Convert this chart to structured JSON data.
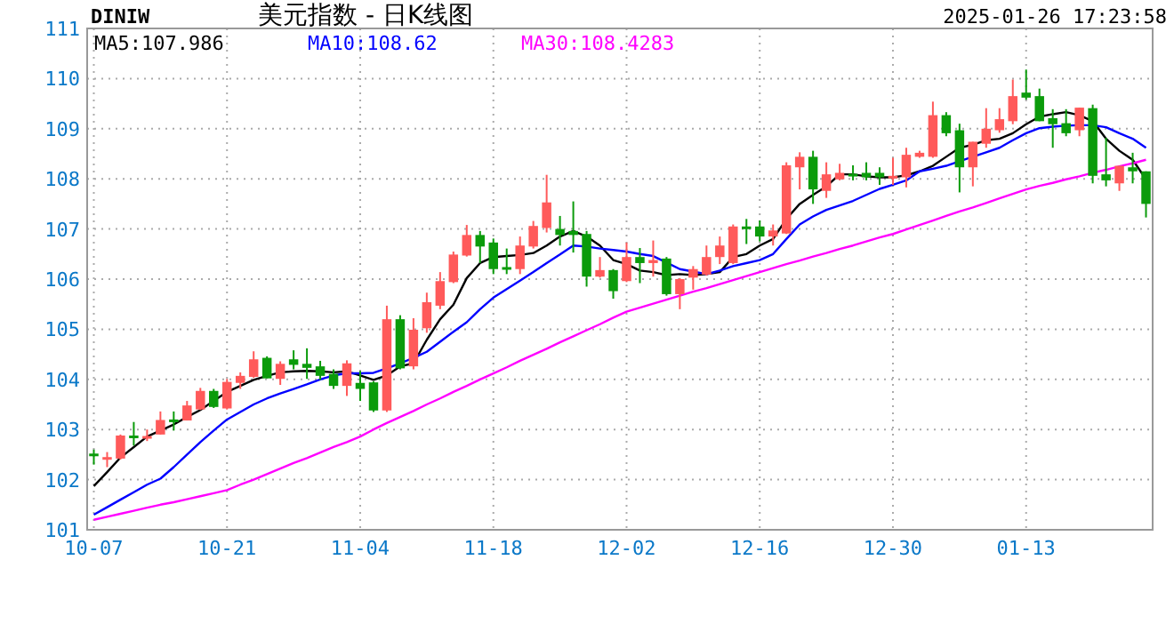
{
  "chart_data": {
    "type": "candlestick",
    "title": "美元指数 - 日K线图",
    "annotations": [
      "DINIW",
      "2025-01-26 17:23:58"
    ],
    "categories": [
      "10-07",
      null,
      null,
      null,
      null,
      null,
      null,
      null,
      null,
      null,
      "10-21",
      null,
      null,
      null,
      null,
      null,
      null,
      null,
      null,
      null,
      "11-04",
      null,
      null,
      null,
      null,
      null,
      null,
      null,
      null,
      null,
      "11-18",
      null,
      null,
      null,
      null,
      null,
      null,
      null,
      null,
      null,
      "12-02",
      null,
      null,
      null,
      null,
      null,
      null,
      null,
      null,
      null,
      "12-16",
      null,
      null,
      null,
      null,
      null,
      null,
      null,
      null,
      null,
      "12-30",
      null,
      null,
      null,
      null,
      null,
      null,
      null,
      null,
      null,
      "01-13",
      null,
      null,
      null,
      null,
      null,
      null,
      null,
      null,
      null
    ],
    "ohlc": [
      [
        102.52,
        102.6,
        102.3,
        102.5
      ],
      [
        102.42,
        102.55,
        102.25,
        102.45
      ],
      [
        102.42,
        102.9,
        102.4,
        102.88
      ],
      [
        102.88,
        103.15,
        102.68,
        102.85
      ],
      [
        102.84,
        103.0,
        102.77,
        102.87
      ],
      [
        102.9,
        103.36,
        102.9,
        103.19
      ],
      [
        103.2,
        103.36,
        102.98,
        103.18
      ],
      [
        103.18,
        103.57,
        103.18,
        103.48
      ],
      [
        103.4,
        103.83,
        103.39,
        103.77
      ],
      [
        103.77,
        103.81,
        103.43,
        103.45
      ],
      [
        103.42,
        104.01,
        103.4,
        103.95
      ],
      [
        103.93,
        104.14,
        103.81,
        104.07
      ],
      [
        104.05,
        104.56,
        104.03,
        104.4
      ],
      [
        104.43,
        104.46,
        104.02,
        104.02
      ],
      [
        104.01,
        104.36,
        103.89,
        104.31
      ],
      [
        104.4,
        104.58,
        104.2,
        104.29
      ],
      [
        104.31,
        104.62,
        104.01,
        104.23
      ],
      [
        104.26,
        104.37,
        103.99,
        104.07
      ],
      [
        104.11,
        104.2,
        103.81,
        103.87
      ],
      [
        103.87,
        104.38,
        103.67,
        104.32
      ],
      [
        103.93,
        104.17,
        103.57,
        103.81
      ],
      [
        103.94,
        103.96,
        103.35,
        103.38
      ],
      [
        103.38,
        105.47,
        103.35,
        105.2
      ],
      [
        105.2,
        105.28,
        104.2,
        104.22
      ],
      [
        104.26,
        105.22,
        104.2,
        104.99
      ],
      [
        105.02,
        105.73,
        104.93,
        105.54
      ],
      [
        105.47,
        106.14,
        105.4,
        105.96
      ],
      [
        105.94,
        106.55,
        105.92,
        106.49
      ],
      [
        106.47,
        107.08,
        106.45,
        106.88
      ],
      [
        106.88,
        106.96,
        106.32,
        106.65
      ],
      [
        106.73,
        106.81,
        106.1,
        106.2
      ],
      [
        106.24,
        106.61,
        106.1,
        106.22
      ],
      [
        106.2,
        106.85,
        106.1,
        106.67
      ],
      [
        106.65,
        107.16,
        106.61,
        107.06
      ],
      [
        107.02,
        108.08,
        106.93,
        107.53
      ],
      [
        107.0,
        107.26,
        106.67,
        106.88
      ],
      [
        106.96,
        107.55,
        106.53,
        106.88
      ],
      [
        106.9,
        106.96,
        105.85,
        106.05
      ],
      [
        106.05,
        106.44,
        106.03,
        106.18
      ],
      [
        106.18,
        106.2,
        105.61,
        105.76
      ],
      [
        105.96,
        106.73,
        105.94,
        106.44
      ],
      [
        106.44,
        106.62,
        105.92,
        106.32
      ],
      [
        106.32,
        106.77,
        106.05,
        106.38
      ],
      [
        106.41,
        106.44,
        105.67,
        105.7
      ],
      [
        105.7,
        106.02,
        105.4,
        106.0
      ],
      [
        106.03,
        106.26,
        105.79,
        106.2
      ],
      [
        106.09,
        106.67,
        106.07,
        106.44
      ],
      [
        106.44,
        106.85,
        106.3,
        106.67
      ],
      [
        106.32,
        107.09,
        106.3,
        107.05
      ],
      [
        107.05,
        107.2,
        106.7,
        107.0
      ],
      [
        107.05,
        107.17,
        106.75,
        106.85
      ],
      [
        106.85,
        107.09,
        106.67,
        106.97
      ],
      [
        106.91,
        108.33,
        106.9,
        108.27
      ],
      [
        108.23,
        108.53,
        107.79,
        108.44
      ],
      [
        108.44,
        108.56,
        107.5,
        107.79
      ],
      [
        107.76,
        108.33,
        107.62,
        108.09
      ],
      [
        107.99,
        108.3,
        107.97,
        108.12
      ],
      [
        108.1,
        108.27,
        107.97,
        108.07
      ],
      [
        108.12,
        108.33,
        107.97,
        108.03
      ],
      [
        108.12,
        108.23,
        107.88,
        108.03
      ],
      [
        108.03,
        108.42,
        107.88,
        108.06
      ],
      [
        108.03,
        108.62,
        107.83,
        108.48
      ],
      [
        108.44,
        108.56,
        108.42,
        108.52
      ],
      [
        108.44,
        109.54,
        108.42,
        109.27
      ],
      [
        109.27,
        109.33,
        108.85,
        108.91
      ],
      [
        108.97,
        109.1,
        107.73,
        108.23
      ],
      [
        108.23,
        108.74,
        107.85,
        108.74
      ],
      [
        108.7,
        109.41,
        108.62,
        109.0
      ],
      [
        108.97,
        109.41,
        108.92,
        109.19
      ],
      [
        109.15,
        109.98,
        109.09,
        109.65
      ],
      [
        109.72,
        110.18,
        109.58,
        109.62
      ],
      [
        109.65,
        109.8,
        109.15,
        109.15
      ],
      [
        109.21,
        109.39,
        108.62,
        109.09
      ],
      [
        109.11,
        109.39,
        108.85,
        108.91
      ],
      [
        108.97,
        109.42,
        108.85,
        109.42
      ],
      [
        109.41,
        109.48,
        107.91,
        108.06
      ],
      [
        108.09,
        108.82,
        107.85,
        107.97
      ],
      [
        107.91,
        108.26,
        107.76,
        108.26
      ],
      [
        108.23,
        108.52,
        107.91,
        108.15
      ],
      [
        108.15,
        108.15,
        107.23,
        107.5
      ]
    ],
    "colors": [
      "#0b9b0b",
      "#ff5a5a",
      "#ff5a5a",
      "#0b9b0b",
      "#ff5a5a",
      "#ff5a5a",
      "#0b9b0b",
      "#ff5a5a",
      "#ff5a5a",
      "#0b9b0b",
      "#ff5a5a",
      "#ff5a5a",
      "#ff5a5a",
      "#0b9b0b",
      "#ff5a5a",
      "#0b9b0b",
      "#0b9b0b",
      "#0b9b0b",
      "#0b9b0b",
      "#ff5a5a",
      "#0b9b0b",
      "#0b9b0b",
      "#ff5a5a",
      "#0b9b0b",
      "#ff5a5a",
      "#ff5a5a",
      "#ff5a5a",
      "#ff5a5a",
      "#ff5a5a",
      "#0b9b0b",
      "#0b9b0b",
      "#0b9b0b",
      "#ff5a5a",
      "#ff5a5a",
      "#ff5a5a",
      "#0b9b0b",
      "#0b9b0b",
      "#0b9b0b",
      "#ff5a5a",
      "#0b9b0b",
      "#ff5a5a",
      "#0b9b0b",
      "#ff5a5a",
      "#0b9b0b",
      "#ff5a5a",
      "#ff5a5a",
      "#ff5a5a",
      "#ff5a5a",
      "#ff5a5a",
      "#0b9b0b",
      "#0b9b0b",
      "#ff5a5a",
      "#ff5a5a",
      "#ff5a5a",
      "#0b9b0b",
      "#ff5a5a",
      "#ff5a5a",
      "#0b9b0b",
      "#0b9b0b",
      "#0b9b0b",
      "#ff5a5a",
      "#ff5a5a",
      "#ff5a5a",
      "#ff5a5a",
      "#0b9b0b",
      "#0b9b0b",
      "#ff5a5a",
      "#ff5a5a",
      "#ff5a5a",
      "#ff5a5a",
      "#0b9b0b",
      "#0b9b0b",
      "#0b9b0b",
      "#0b9b0b",
      "#ff5a5a",
      "#0b9b0b",
      "#0b9b0b",
      "#ff5a5a",
      "#0b9b0b",
      "#0b9b0b"
    ],
    "series": [
      {
        "type": "line",
        "name": "MA5:107.986",
        "color": "#000000",
        "values": [
          101.87,
          102.15,
          102.44,
          102.65,
          102.86,
          102.98,
          103.1,
          103.25,
          103.39,
          103.57,
          103.75,
          103.87,
          103.99,
          104.07,
          104.14,
          104.16,
          104.17,
          104.16,
          104.14,
          104.16,
          104.08,
          103.99,
          104.08,
          104.26,
          104.32,
          104.79,
          105.2,
          105.49,
          106.02,
          106.32,
          106.44,
          106.46,
          106.48,
          106.52,
          106.67,
          106.85,
          106.96,
          106.85,
          106.67,
          106.38,
          106.3,
          106.17,
          106.14,
          106.08,
          106.1,
          106.08,
          106.1,
          106.14,
          106.44,
          106.5,
          106.67,
          106.8,
          107.2,
          107.5,
          107.68,
          107.85,
          108.09,
          108.09,
          108.05,
          108.03,
          108.03,
          108.07,
          108.15,
          108.26,
          108.44,
          108.62,
          108.68,
          108.77,
          108.8,
          108.91,
          109.09,
          109.24,
          109.29,
          109.33,
          109.27,
          109.15,
          108.8,
          108.56,
          108.38,
          107.99
        ]
      },
      {
        "type": "line",
        "name": "MA10:108.62",
        "color": "#0000ff",
        "values": [
          101.3,
          101.45,
          101.6,
          101.75,
          101.9,
          102.02,
          102.25,
          102.5,
          102.75,
          102.98,
          103.2,
          103.35,
          103.5,
          103.62,
          103.72,
          103.81,
          103.9,
          104.0,
          104.08,
          104.12,
          104.12,
          104.13,
          104.22,
          104.32,
          104.43,
          104.55,
          104.75,
          104.95,
          105.14,
          105.4,
          105.63,
          105.8,
          105.97,
          106.14,
          106.32,
          106.49,
          106.67,
          106.65,
          106.61,
          106.58,
          106.55,
          106.5,
          106.46,
          106.33,
          106.2,
          106.15,
          106.1,
          106.17,
          106.26,
          106.32,
          106.38,
          106.5,
          106.8,
          107.09,
          107.25,
          107.38,
          107.47,
          107.56,
          107.68,
          107.8,
          107.88,
          107.97,
          108.15,
          108.2,
          108.26,
          108.35,
          108.44,
          108.53,
          108.62,
          108.77,
          108.91,
          109.01,
          109.04,
          109.06,
          109.07,
          109.07,
          109.03,
          108.91,
          108.8,
          108.62
        ]
      },
      {
        "type": "line",
        "name": "MA30:108.4283",
        "color": "#ff00ff",
        "values": [
          101.2,
          101.26,
          101.32,
          101.38,
          101.44,
          101.5,
          101.55,
          101.61,
          101.67,
          101.73,
          101.79,
          101.9,
          102.0,
          102.11,
          102.22,
          102.33,
          102.43,
          102.54,
          102.65,
          102.75,
          102.86,
          103.0,
          103.13,
          103.25,
          103.37,
          103.5,
          103.62,
          103.75,
          103.87,
          104.0,
          104.12,
          104.24,
          104.37,
          104.49,
          104.61,
          104.74,
          104.86,
          104.98,
          105.1,
          105.23,
          105.35,
          105.43,
          105.51,
          105.59,
          105.67,
          105.75,
          105.82,
          105.9,
          105.98,
          106.06,
          106.14,
          106.22,
          106.3,
          106.37,
          106.45,
          106.52,
          106.6,
          106.67,
          106.75,
          106.83,
          106.9,
          106.99,
          107.08,
          107.17,
          107.26,
          107.35,
          107.43,
          107.52,
          107.61,
          107.7,
          107.79,
          107.86,
          107.92,
          107.99,
          108.05,
          108.12,
          108.18,
          108.25,
          108.31,
          108.38
        ]
      }
    ],
    "ylim": [
      101,
      111
    ],
    "yticks": [
      101,
      102,
      103,
      104,
      105,
      106,
      107,
      108,
      109,
      110,
      111
    ],
    "grid": true,
    "legend": "top left"
  }
}
